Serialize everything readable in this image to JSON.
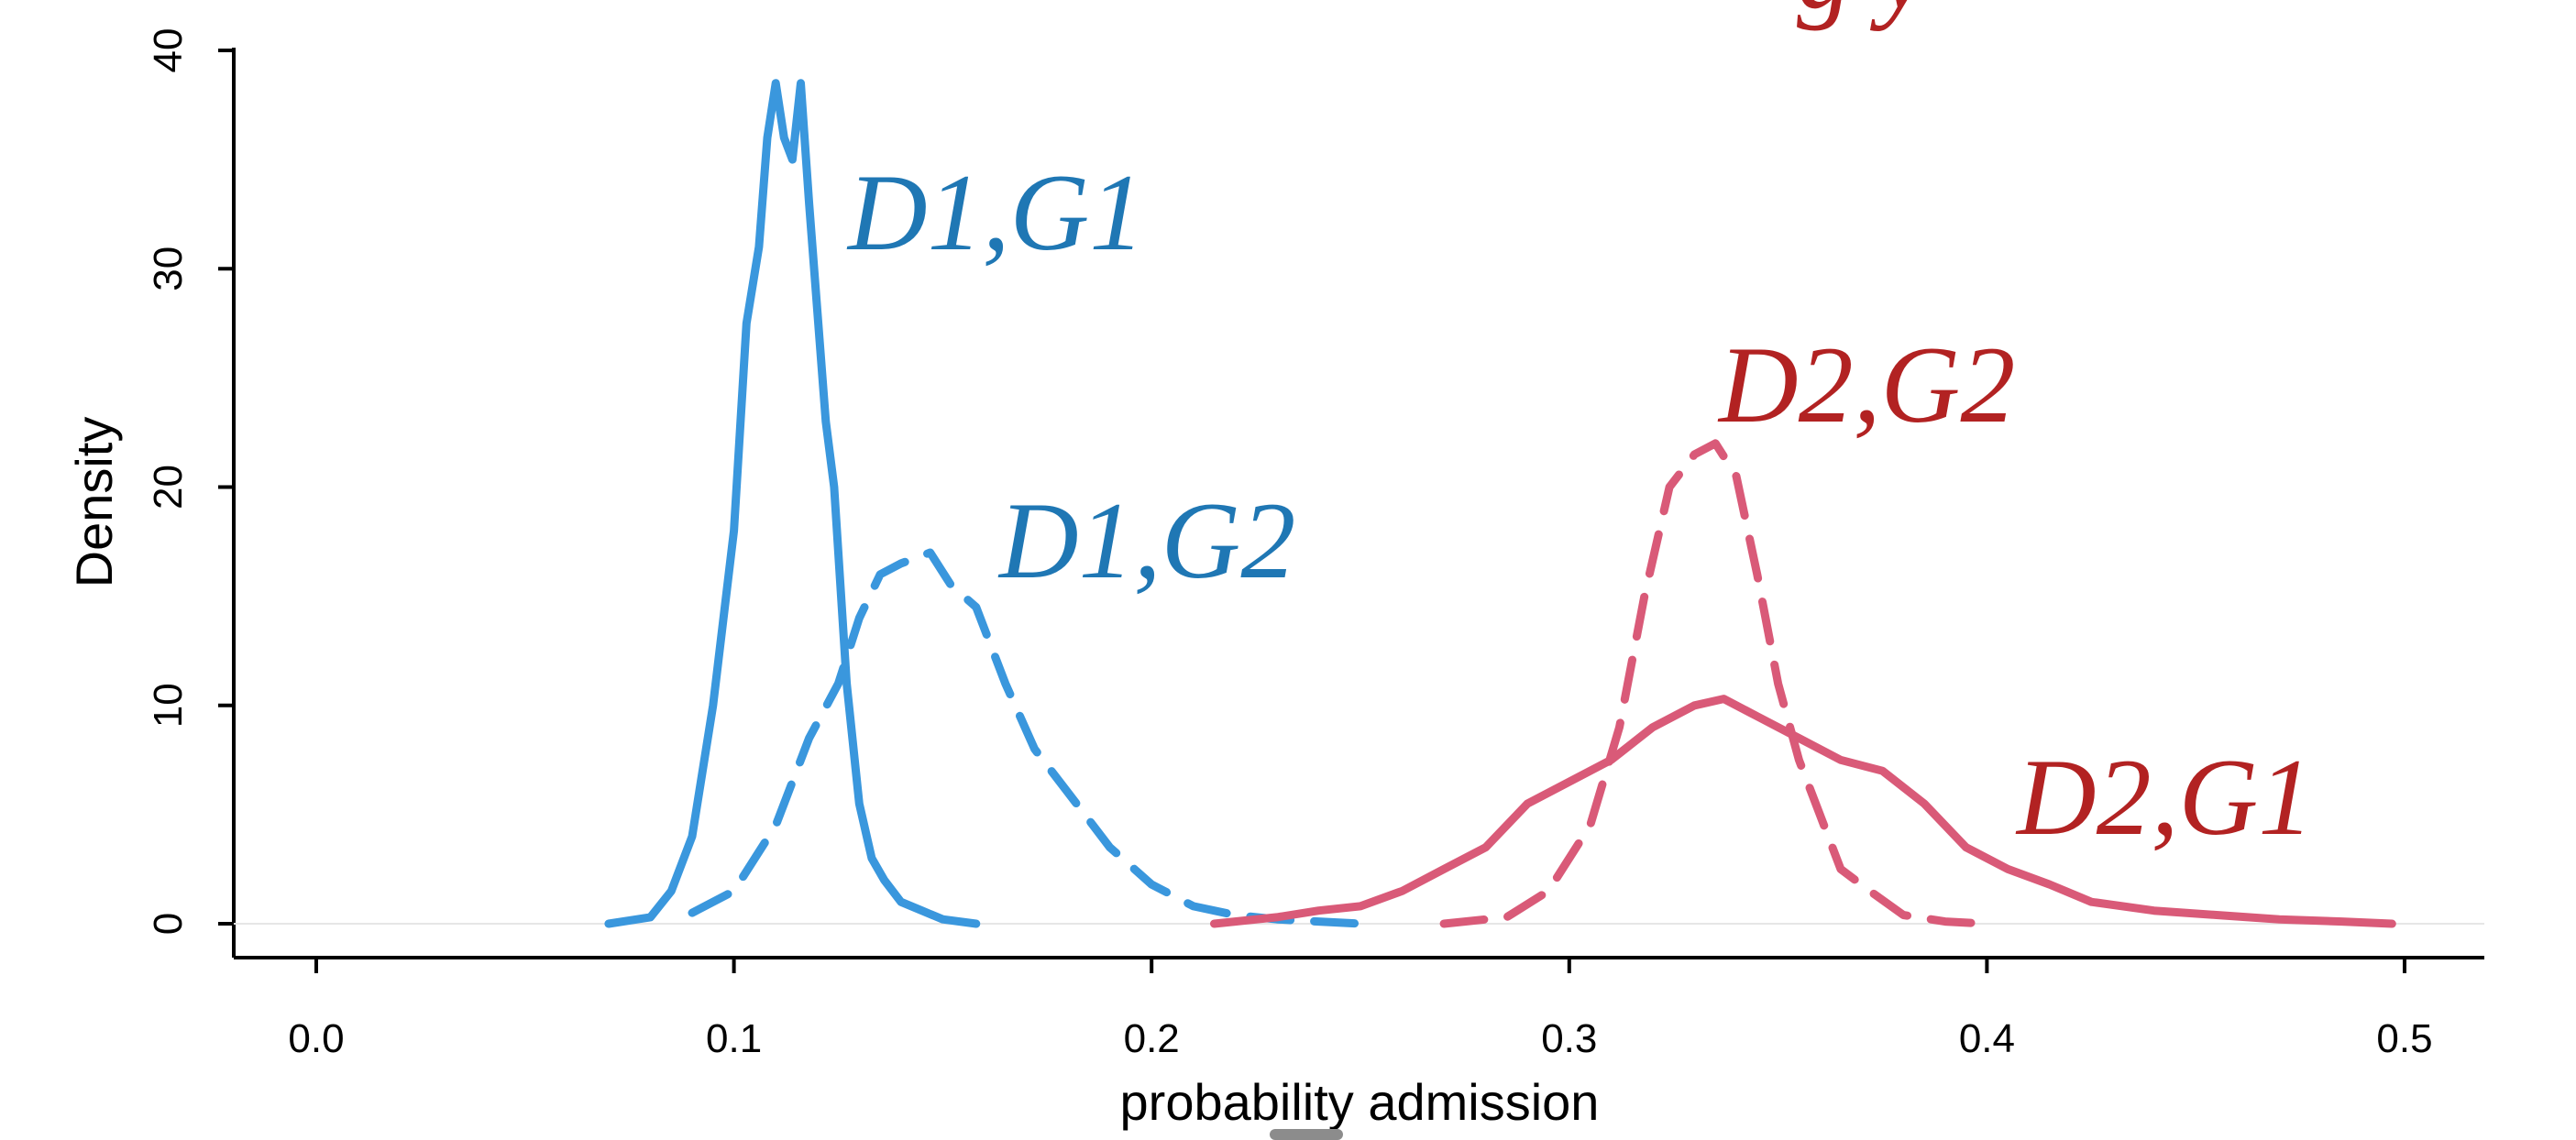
{
  "chart_data": {
    "type": "line",
    "title": "",
    "xlabel": "probability admission",
    "ylabel": "Density",
    "xlim": [
      0.0,
      0.5
    ],
    "ylim": [
      0,
      40
    ],
    "x_ticks": [
      "0.0",
      "0.1",
      "0.2",
      "0.3",
      "0.4",
      "0.5"
    ],
    "y_ticks": [
      "0",
      "10",
      "20",
      "30",
      "40"
    ],
    "grid": false,
    "legend": "none (direct labels)",
    "colors": {
      "blue": "#3a97dd",
      "blue_label": "#1f77b4",
      "red": "#d95a78",
      "red_label": "#b22222"
    },
    "series": [
      {
        "name": "D1,G1",
        "style": "solid",
        "color": "blue",
        "x": [
          0.07,
          0.08,
          0.085,
          0.09,
          0.095,
          0.1,
          0.103,
          0.106,
          0.108,
          0.11,
          0.112,
          0.114,
          0.116,
          0.118,
          0.12,
          0.122,
          0.124,
          0.127,
          0.13,
          0.133,
          0.136,
          0.14,
          0.145,
          0.15,
          0.158
        ],
        "y": [
          0.0,
          0.3,
          1.5,
          4.0,
          10.0,
          18.0,
          27.5,
          31.0,
          36.0,
          38.5,
          36.0,
          35.0,
          38.5,
          33.0,
          28.0,
          23.0,
          20.0,
          11.0,
          5.5,
          3.0,
          2.0,
          1.0,
          0.6,
          0.2,
          0.0
        ]
      },
      {
        "name": "D1,G2",
        "style": "dashed",
        "color": "blue",
        "x": [
          0.09,
          0.1,
          0.11,
          0.118,
          0.125,
          0.13,
          0.135,
          0.14,
          0.147,
          0.152,
          0.158,
          0.165,
          0.172,
          0.18,
          0.19,
          0.2,
          0.21,
          0.22,
          0.23,
          0.24,
          0.25
        ],
        "y": [
          0.5,
          1.5,
          4.5,
          8.5,
          11.0,
          14.0,
          16.0,
          16.5,
          17.0,
          15.5,
          14.5,
          11.0,
          8.0,
          6.0,
          3.5,
          1.8,
          0.8,
          0.4,
          0.2,
          0.1,
          0.0
        ]
      },
      {
        "name": "D2,G2",
        "style": "dashed",
        "color": "red",
        "x": [
          0.27,
          0.285,
          0.295,
          0.305,
          0.312,
          0.318,
          0.324,
          0.33,
          0.335,
          0.34,
          0.345,
          0.35,
          0.355,
          0.36,
          0.365,
          0.372,
          0.38,
          0.39,
          0.4
        ],
        "y": [
          0.0,
          0.3,
          1.5,
          4.5,
          9.0,
          15.0,
          20.0,
          21.5,
          22.0,
          20.5,
          16.0,
          11.0,
          7.5,
          5.0,
          2.5,
          1.5,
          0.4,
          0.1,
          0.0
        ]
      },
      {
        "name": "D2,G1",
        "style": "solid",
        "color": "red",
        "x": [
          0.215,
          0.23,
          0.24,
          0.25,
          0.26,
          0.27,
          0.28,
          0.29,
          0.3,
          0.31,
          0.32,
          0.33,
          0.337,
          0.345,
          0.355,
          0.365,
          0.375,
          0.385,
          0.395,
          0.405,
          0.415,
          0.425,
          0.44,
          0.455,
          0.47,
          0.485,
          0.497
        ],
        "y": [
          0.0,
          0.3,
          0.6,
          0.8,
          1.5,
          2.5,
          3.5,
          5.5,
          6.5,
          7.5,
          9.0,
          10.0,
          10.3,
          9.5,
          8.5,
          7.5,
          7.0,
          5.5,
          3.5,
          2.5,
          1.8,
          1.0,
          0.6,
          0.4,
          0.2,
          0.1,
          0.0
        ]
      }
    ]
  },
  "corner_text": "g y"
}
